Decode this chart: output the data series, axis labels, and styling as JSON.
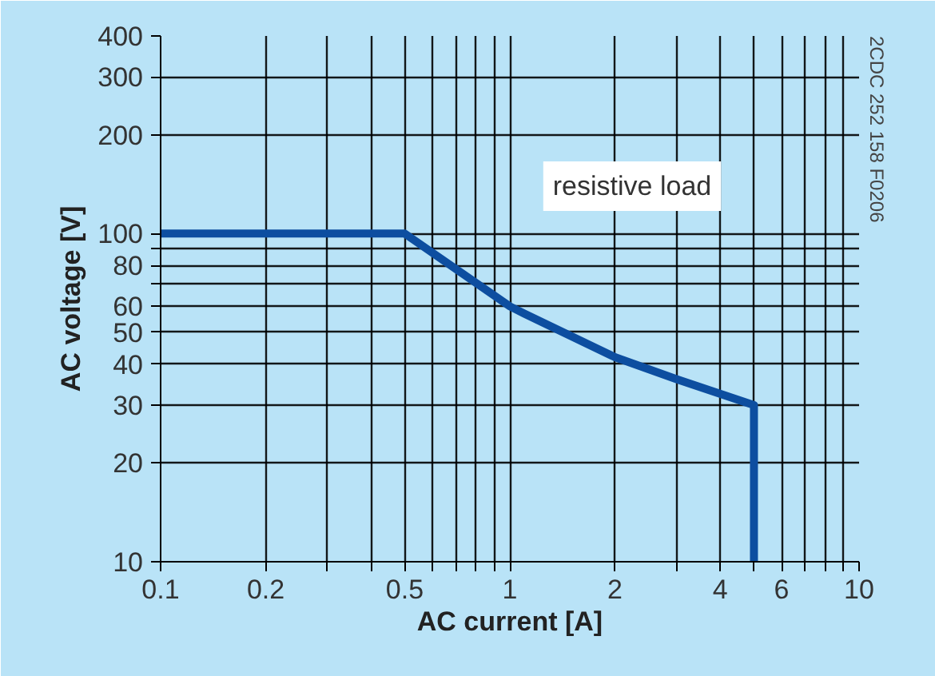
{
  "chart_data": {
    "type": "line",
    "xlabel": "AC current [A]",
    "ylabel": "AC voltage [V]",
    "log": "xy",
    "grid": true,
    "marker": "none",
    "line_style": "solid",
    "xlim": [
      0.1,
      10
    ],
    "ylim": [
      10,
      400
    ],
    "xticks": [
      0.1,
      0.2,
      {
        "value": 0.3,
        "label": null
      },
      {
        "value": 0.4,
        "label": null
      },
      0.5,
      {
        "value": 0.6,
        "label": null
      },
      {
        "value": 0.7,
        "label": null
      },
      {
        "value": 0.8,
        "label": null
      },
      {
        "value": 0.9,
        "label": null
      },
      1,
      2,
      {
        "value": 3,
        "label": null
      },
      4,
      {
        "value": 5,
        "label": null
      },
      6,
      {
        "value": 7,
        "label": null
      },
      {
        "value": 8,
        "label": null
      },
      {
        "value": 9,
        "label": null
      },
      10
    ],
    "yticks": [
      10,
      20,
      30,
      40,
      50,
      60,
      {
        "value": 70,
        "label": null
      },
      80,
      {
        "value": 90,
        "label": null
      },
      100,
      200,
      300,
      400
    ],
    "series": [
      {
        "color": "#0d4ea0",
        "x": [
          0.1,
          0.5,
          1,
          1.1,
          2,
          3,
          5,
          5
        ],
        "values": [
          100,
          100,
          60,
          57,
          42,
          36,
          30,
          10
        ]
      }
    ],
    "annotations": [
      "resistive load",
      "2CDC 252 158 F0206"
    ]
  }
}
